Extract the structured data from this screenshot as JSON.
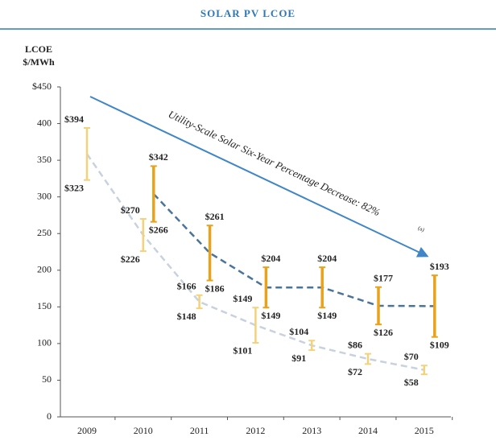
{
  "chart_data": {
    "type": "range",
    "title": "SOLAR PV LCOE",
    "y_label": [
      "LCOE",
      "$/MWh"
    ],
    "annotation": "Utility-Scale Solar Six-Year Percentage Decrease: 82%",
    "annotation_note": "(a)",
    "categories": [
      "2009",
      "2010",
      "2011",
      "2012",
      "2013",
      "2014",
      "2015"
    ],
    "ylim": [
      0,
      450
    ],
    "yticks": [
      0,
      50,
      100,
      150,
      200,
      250,
      300,
      350,
      400,
      {
        "value": 450,
        "label": "$450"
      }
    ],
    "series": [
      {
        "color": "#f2d27a",
        "trend_color": "#c8d2de",
        "high": [
          394,
          270,
          166,
          149,
          104,
          86,
          70
        ],
        "low": [
          323,
          226,
          148,
          101,
          91,
          72,
          58
        ],
        "high_labels": [
          "$394",
          "$270",
          "$166",
          "$149",
          "$104",
          "$86",
          "$70"
        ],
        "low_labels": [
          "$323",
          "$226",
          "$148",
          "$101",
          "$91",
          "$72",
          "$58"
        ]
      },
      {
        "color": "#e8a21c",
        "trend_color": "#4a7499",
        "high": [
          null,
          342,
          261,
          204,
          204,
          177,
          193
        ],
        "low": [
          null,
          266,
          186,
          149,
          149,
          126,
          109
        ],
        "high_labels": [
          null,
          "$342",
          "$261",
          "$204",
          "$204",
          "$177",
          "$193"
        ],
        "low_labels": [
          null,
          "$266",
          "$186",
          "$149",
          "$149",
          "$126",
          "$109"
        ]
      }
    ]
  }
}
